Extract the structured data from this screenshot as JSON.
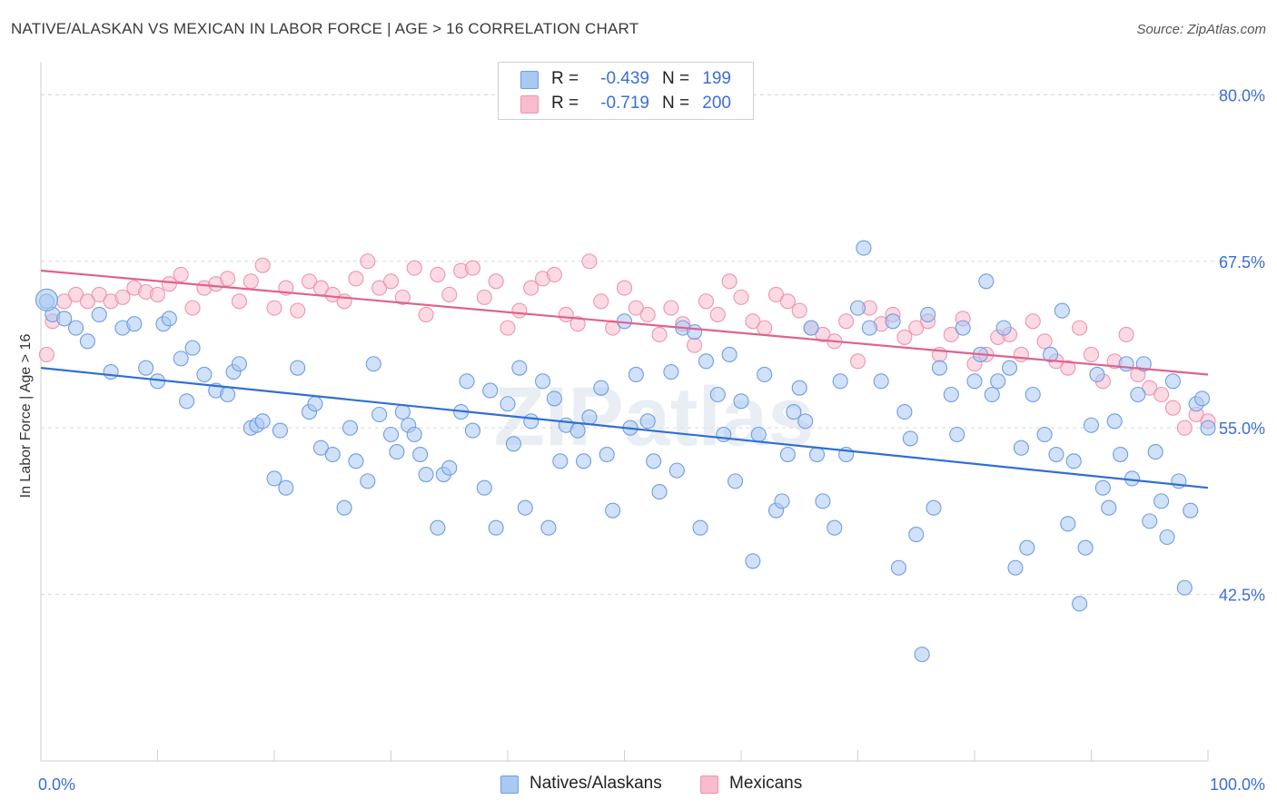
{
  "title": "NATIVE/ALASKAN VS MEXICAN IN LABOR FORCE | AGE > 16 CORRELATION CHART",
  "source": "Source: ZipAtlas.com",
  "watermark": "ZIPatlas",
  "legend": {
    "rows": [
      {
        "r_label": "R =",
        "r_value": "-0.439",
        "n_label": "N =",
        "n_value": "199"
      },
      {
        "r_label": "R =",
        "r_value": "-0.719",
        "n_label": "N =",
        "n_value": "200"
      }
    ]
  },
  "colors": {
    "blue_fill": "#a9c8f2",
    "blue_stroke": "#6f9ee0",
    "blue_line": "#2f6fd6",
    "pink_fill": "#f7bccd",
    "pink_stroke": "#ee95b0",
    "pink_line": "#e0628c",
    "axis_label": "#3b6fd6",
    "grid": "#d9d9d9"
  },
  "chart_data": {
    "type": "scatter",
    "title": "NATIVE/ALASKAN VS MEXICAN IN LABOR FORCE | AGE > 16 CORRELATION CHART",
    "xlabel": "",
    "ylabel": "In Labor Force | Age > 16",
    "xlim": [
      0,
      100
    ],
    "ylim": [
      30,
      82
    ],
    "x_tick_labels": [
      "0.0%",
      "100.0%"
    ],
    "y_ticks": [
      42.5,
      55.0,
      67.5,
      80.0
    ],
    "y_tick_labels": [
      "42.5%",
      "55.0%",
      "67.5%",
      "80.0%"
    ],
    "grid": true,
    "legend_position": "bottom",
    "series": [
      {
        "name": "Natives/Alaskans",
        "R": -0.439,
        "N": 199,
        "trend": {
          "x": [
            0,
            100
          ],
          "y": [
            59.5,
            50.5
          ]
        },
        "points": [
          [
            0.5,
            64.5
          ],
          [
            1,
            63.5
          ],
          [
            2,
            63.2
          ],
          [
            3,
            62.5
          ],
          [
            4,
            61.5
          ],
          [
            5,
            63.5
          ],
          [
            6,
            59.2
          ],
          [
            7,
            62.5
          ],
          [
            8,
            62.8
          ],
          [
            9,
            59.5
          ],
          [
            10,
            58.5
          ],
          [
            10.5,
            62.8
          ],
          [
            11,
            63.2
          ],
          [
            12,
            60.2
          ],
          [
            12.5,
            57.0
          ],
          [
            13,
            61.0
          ],
          [
            14,
            59.0
          ],
          [
            15,
            57.8
          ],
          [
            16,
            57.5
          ],
          [
            16.5,
            59.2
          ],
          [
            17,
            59.8
          ],
          [
            18,
            55.0
          ],
          [
            18.5,
            55.2
          ],
          [
            19,
            55.5
          ],
          [
            20,
            51.2
          ],
          [
            20.5,
            54.8
          ],
          [
            21,
            50.5
          ],
          [
            22,
            59.5
          ],
          [
            23,
            56.2
          ],
          [
            23.5,
            56.8
          ],
          [
            24,
            53.5
          ],
          [
            25,
            53.0
          ],
          [
            26,
            49.0
          ],
          [
            26.5,
            55.0
          ],
          [
            27,
            52.5
          ],
          [
            28,
            51.0
          ],
          [
            28.5,
            59.8
          ],
          [
            29,
            56.0
          ],
          [
            30,
            54.5
          ],
          [
            30.5,
            53.2
          ],
          [
            31,
            56.2
          ],
          [
            31.5,
            55.2
          ],
          [
            32,
            54.5
          ],
          [
            32.5,
            53.0
          ],
          [
            33,
            51.5
          ],
          [
            34,
            47.5
          ],
          [
            34.5,
            51.5
          ],
          [
            35,
            52.0
          ],
          [
            36,
            56.2
          ],
          [
            36.5,
            58.5
          ],
          [
            37,
            54.8
          ],
          [
            38,
            50.5
          ],
          [
            38.5,
            57.8
          ],
          [
            39,
            47.5
          ],
          [
            40,
            56.8
          ],
          [
            40.5,
            53.8
          ],
          [
            41,
            59.5
          ],
          [
            41.5,
            49.0
          ],
          [
            42,
            55.5
          ],
          [
            43,
            58.5
          ],
          [
            43.5,
            47.5
          ],
          [
            44,
            57.2
          ],
          [
            44.5,
            52.5
          ],
          [
            45,
            55.2
          ],
          [
            46,
            54.8
          ],
          [
            46.5,
            52.5
          ],
          [
            47,
            55.8
          ],
          [
            48,
            58.0
          ],
          [
            48.5,
            53.0
          ],
          [
            49,
            48.8
          ],
          [
            50,
            63.0
          ],
          [
            50.5,
            55.0
          ],
          [
            51,
            59.0
          ],
          [
            52,
            55.5
          ],
          [
            52.5,
            52.5
          ],
          [
            53,
            50.2
          ],
          [
            54,
            59.2
          ],
          [
            54.5,
            51.8
          ],
          [
            55,
            62.5
          ],
          [
            56,
            62.2
          ],
          [
            56.5,
            47.5
          ],
          [
            57,
            60.0
          ],
          [
            58,
            57.5
          ],
          [
            58.5,
            54.5
          ],
          [
            59,
            60.5
          ],
          [
            59.5,
            51.0
          ],
          [
            60,
            57.0
          ],
          [
            61,
            45.0
          ],
          [
            61.5,
            54.5
          ],
          [
            62,
            59.0
          ],
          [
            63,
            48.8
          ],
          [
            63.5,
            49.5
          ],
          [
            64,
            53.0
          ],
          [
            64.5,
            56.2
          ],
          [
            65,
            58.0
          ],
          [
            65.5,
            55.5
          ],
          [
            66,
            62.5
          ],
          [
            66.5,
            53.0
          ],
          [
            67,
            49.5
          ],
          [
            68,
            47.5
          ],
          [
            68.5,
            58.5
          ],
          [
            69,
            53.0
          ],
          [
            70,
            64.0
          ],
          [
            70.5,
            68.5
          ],
          [
            71,
            62.5
          ],
          [
            72,
            58.5
          ],
          [
            73,
            63.0
          ],
          [
            73.5,
            44.5
          ],
          [
            74,
            56.2
          ],
          [
            74.5,
            54.2
          ],
          [
            75,
            47.0
          ],
          [
            75.5,
            38.0
          ],
          [
            76,
            63.5
          ],
          [
            76.5,
            49.0
          ],
          [
            77,
            59.5
          ],
          [
            78,
            57.5
          ],
          [
            78.5,
            54.5
          ],
          [
            79,
            62.5
          ],
          [
            80,
            58.5
          ],
          [
            80.5,
            60.5
          ],
          [
            81,
            66.0
          ],
          [
            81.5,
            57.5
          ],
          [
            82,
            58.5
          ],
          [
            82.5,
            62.5
          ],
          [
            83,
            59.5
          ],
          [
            83.5,
            44.5
          ],
          [
            84,
            53.5
          ],
          [
            84.5,
            46.0
          ],
          [
            85,
            57.5
          ],
          [
            86,
            54.5
          ],
          [
            86.5,
            60.5
          ],
          [
            87,
            53.0
          ],
          [
            87.5,
            63.8
          ],
          [
            88,
            47.8
          ],
          [
            88.5,
            52.5
          ],
          [
            89,
            41.8
          ],
          [
            89.5,
            46.0
          ],
          [
            90,
            55.2
          ],
          [
            90.5,
            59.0
          ],
          [
            91,
            50.5
          ],
          [
            91.5,
            49.0
          ],
          [
            92,
            55.5
          ],
          [
            92.5,
            53.0
          ],
          [
            93,
            59.8
          ],
          [
            93.5,
            51.2
          ],
          [
            94,
            57.5
          ],
          [
            94.5,
            59.8
          ],
          [
            95,
            48.0
          ],
          [
            95.5,
            53.2
          ],
          [
            96,
            49.5
          ],
          [
            96.5,
            46.8
          ],
          [
            97,
            58.5
          ],
          [
            97.5,
            51.0
          ],
          [
            98,
            43.0
          ],
          [
            98.5,
            48.8
          ],
          [
            99,
            56.8
          ],
          [
            99.5,
            57.2
          ],
          [
            100,
            55.0
          ]
        ],
        "points_scaled": false
      },
      {
        "name": "Mexicans",
        "R": -0.719,
        "N": 200,
        "trend": {
          "x": [
            0,
            100
          ],
          "y": [
            66.8,
            59.0
          ]
        },
        "points": [
          [
            0.5,
            60.5
          ],
          [
            1,
            63.0
          ],
          [
            2,
            64.5
          ],
          [
            3,
            65.0
          ],
          [
            4,
            64.5
          ],
          [
            5,
            65.0
          ],
          [
            6,
            64.5
          ],
          [
            7,
            64.8
          ],
          [
            8,
            65.5
          ],
          [
            9,
            65.2
          ],
          [
            10,
            65.0
          ],
          [
            11,
            65.8
          ],
          [
            12,
            66.5
          ],
          [
            13,
            64.0
          ],
          [
            14,
            65.5
          ],
          [
            15,
            65.8
          ],
          [
            16,
            66.2
          ],
          [
            17,
            64.5
          ],
          [
            18,
            66.0
          ],
          [
            19,
            67.2
          ],
          [
            20,
            64.0
          ],
          [
            21,
            65.5
          ],
          [
            22,
            63.8
          ],
          [
            23,
            66.0
          ],
          [
            24,
            65.5
          ],
          [
            25,
            65.0
          ],
          [
            26,
            64.5
          ],
          [
            27,
            66.2
          ],
          [
            28,
            67.5
          ],
          [
            29,
            65.5
          ],
          [
            30,
            66.0
          ],
          [
            31,
            64.8
          ],
          [
            32,
            67.0
          ],
          [
            33,
            63.5
          ],
          [
            34,
            66.5
          ],
          [
            35,
            65.0
          ],
          [
            36,
            66.8
          ],
          [
            37,
            67.0
          ],
          [
            38,
            64.8
          ],
          [
            39,
            66.0
          ],
          [
            40,
            62.5
          ],
          [
            41,
            63.8
          ],
          [
            42,
            65.5
          ],
          [
            43,
            66.2
          ],
          [
            44,
            66.5
          ],
          [
            45,
            63.5
          ],
          [
            46,
            62.8
          ],
          [
            47,
            67.5
          ],
          [
            48,
            64.5
          ],
          [
            49,
            62.5
          ],
          [
            50,
            65.5
          ],
          [
            51,
            64.0
          ],
          [
            52,
            63.5
          ],
          [
            53,
            62.0
          ],
          [
            54,
            64.0
          ],
          [
            55,
            62.8
          ],
          [
            56,
            61.2
          ],
          [
            57,
            64.5
          ],
          [
            58,
            63.5
          ],
          [
            59,
            66.0
          ],
          [
            60,
            64.8
          ],
          [
            61,
            63.0
          ],
          [
            62,
            62.5
          ],
          [
            63,
            65.0
          ],
          [
            64,
            64.5
          ],
          [
            65,
            63.8
          ],
          [
            66,
            62.5
          ],
          [
            67,
            62.0
          ],
          [
            68,
            61.5
          ],
          [
            69,
            63.0
          ],
          [
            70,
            60.0
          ],
          [
            71,
            64.0
          ],
          [
            72,
            62.8
          ],
          [
            73,
            63.5
          ],
          [
            74,
            61.8
          ],
          [
            75,
            62.5
          ],
          [
            76,
            63.0
          ],
          [
            77,
            60.5
          ],
          [
            78,
            62.0
          ],
          [
            79,
            63.2
          ],
          [
            80,
            59.8
          ],
          [
            81,
            60.5
          ],
          [
            82,
            61.8
          ],
          [
            83,
            62.0
          ],
          [
            84,
            60.5
          ],
          [
            85,
            63.0
          ],
          [
            86,
            61.5
          ],
          [
            87,
            60.0
          ],
          [
            88,
            59.5
          ],
          [
            89,
            62.5
          ],
          [
            90,
            60.5
          ],
          [
            91,
            58.5
          ],
          [
            92,
            60.0
          ],
          [
            93,
            62.0
          ],
          [
            94,
            59.0
          ],
          [
            95,
            58.0
          ],
          [
            96,
            57.5
          ],
          [
            97,
            56.5
          ],
          [
            98,
            55.0
          ],
          [
            99,
            56.0
          ],
          [
            100,
            55.5
          ]
        ],
        "points_scaled": false
      }
    ]
  },
  "bottom_legend": [
    {
      "label": "Natives/Alaskans"
    },
    {
      "label": "Mexicans"
    }
  ]
}
